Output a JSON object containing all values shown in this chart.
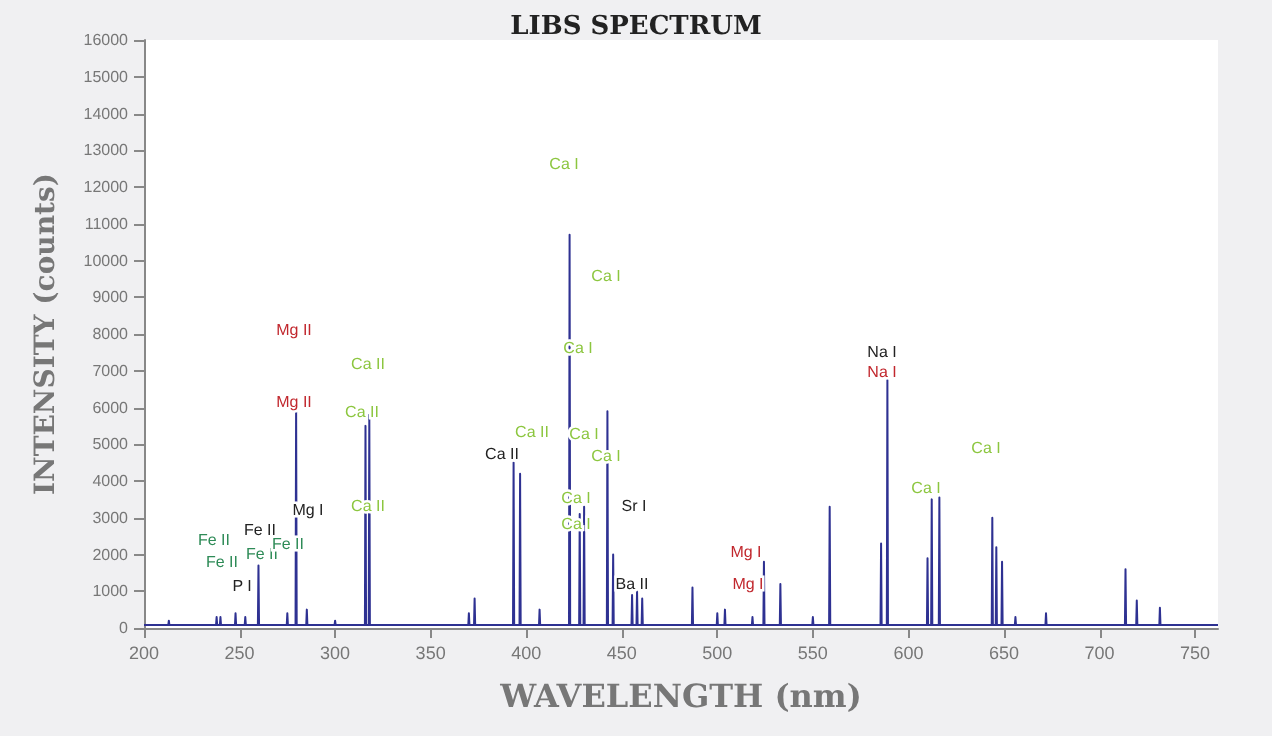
{
  "chart_data": {
    "type": "line",
    "title": "LIBS SPECTRUM",
    "xlabel": "WAVELENGTH (nm)",
    "ylabel": "INTENSITY (counts)",
    "xlim": [
      200,
      762
    ],
    "xticks": [
      200,
      250,
      300,
      350,
      400,
      450,
      500,
      550,
      600,
      650,
      700,
      750
    ],
    "ylim": [
      0,
      16000
    ],
    "yticks": [
      0,
      1000,
      2000,
      3000,
      4000,
      5000,
      6000,
      7000,
      8000,
      9000,
      10000,
      11000,
      12000,
      13000,
      14000,
      15000,
      16000
    ],
    "grid": false,
    "marker": "none",
    "line_style": "solid",
    "series": [
      {
        "color": "#2e3192",
        "x": [
          200,
          212.7,
          213,
          213.3,
          237.7,
          238,
          238.3,
          239.7,
          240,
          240.3,
          247.6,
          247.9,
          248.2,
          252.7,
          253,
          253.3,
          259.6,
          259.9,
          260.2,
          274.7,
          275,
          275.3,
          279.3,
          279.6,
          279.9,
          284.9,
          285.2,
          285.5,
          299.7,
          300,
          300.3,
          315.6,
          315.9,
          316.2,
          317.6,
          317.9,
          318.2,
          369.7,
          370,
          370.3,
          372.7,
          373,
          373.3,
          393.1,
          393.4,
          393.7,
          396.5,
          396.8,
          397.1,
          406.7,
          407,
          407.3,
          422.4,
          422.7,
          423,
          427.7,
          428,
          428.3,
          430,
          430.3,
          430.6,
          442.2,
          442.5,
          442.8,
          445.2,
          445.5,
          445.8,
          455.1,
          455.4,
          455.7,
          457.7,
          458,
          458.3,
          460.4,
          460.7,
          461,
          486.7,
          487,
          487.3,
          499.7,
          500,
          500.3,
          503.7,
          504,
          504.3,
          518.1,
          518.4,
          518.7,
          524.1,
          524.4,
          524.7,
          532.7,
          533,
          533.3,
          549.7,
          550,
          550.3,
          558.5,
          558.8,
          559.1,
          585.4,
          585.7,
          586,
          588.7,
          589,
          589.3,
          609.7,
          610,
          610.3,
          611.9,
          612.2,
          612.5,
          615.9,
          616.2,
          616.5,
          643.6,
          643.9,
          644.2,
          645.7,
          646,
          646.3,
          648.7,
          649,
          649.3,
          655.7,
          656,
          656.3,
          671.7,
          672,
          672.3,
          713.3,
          713.6,
          713.9,
          719.2,
          719.5,
          719.8,
          731.3,
          731.6,
          731.9,
          762
        ],
        "values": [
          80,
          80,
          200,
          80,
          80,
          300,
          80,
          80,
          300,
          80,
          80,
          400,
          80,
          80,
          300,
          80,
          80,
          1700,
          80,
          80,
          400,
          80,
          80,
          6000,
          80,
          80,
          500,
          80,
          80,
          200,
          80,
          80,
          5500,
          80,
          80,
          5800,
          80,
          80,
          400,
          80,
          80,
          800,
          80,
          80,
          4500,
          80,
          80,
          4200,
          80,
          80,
          500,
          80,
          80,
          10700,
          80,
          80,
          3100,
          80,
          80,
          3300,
          80,
          80,
          5900,
          80,
          80,
          2000,
          80,
          80,
          900,
          80,
          80,
          1000,
          80,
          80,
          800,
          80,
          80,
          1100,
          80,
          80,
          400,
          80,
          80,
          500,
          80,
          80,
          300,
          80,
          80,
          1800,
          80,
          80,
          1200,
          80,
          80,
          300,
          80,
          80,
          3300,
          80,
          80,
          2300,
          80,
          80,
          6750,
          80,
          80,
          1900,
          80,
          80,
          3500,
          80,
          80,
          3550,
          80,
          80,
          3000,
          80,
          80,
          2200,
          80,
          80,
          1800,
          80,
          80,
          300,
          80,
          80,
          400,
          80,
          80,
          1600,
          80,
          80,
          750,
          80,
          80,
          550,
          80,
          80
        ]
      }
    ],
    "annotations": [
      "Fe II",
      "Fe II",
      "P I",
      "Fe II",
      "Fe II",
      "Fe II",
      "Mg II",
      "Mg II",
      "Mg I",
      "Ca II",
      "Ca II",
      "Ca II",
      "Ca II",
      "Ca II",
      "Ca I",
      "Ca I",
      "Ca I",
      "Ca I",
      "Ca I",
      "Ca I",
      "Ca I",
      "Sr I",
      "Ba II",
      "Mg I",
      "Mg I",
      "Na I",
      "Na I",
      "Ca I",
      "Ca I"
    ]
  }
}
